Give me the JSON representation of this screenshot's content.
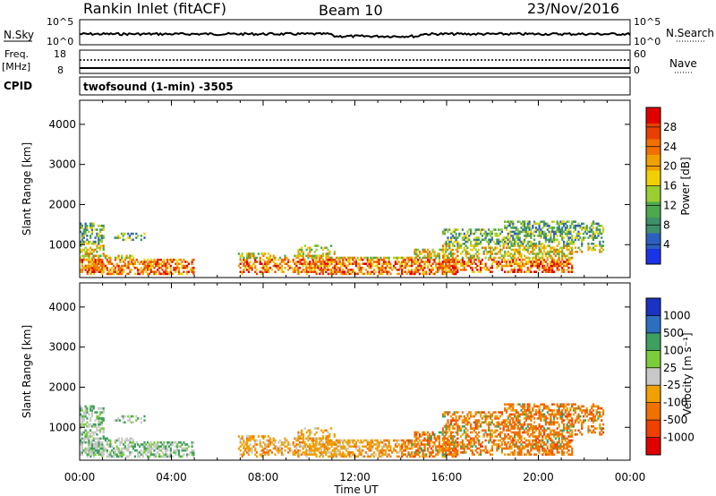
{
  "header": {
    "title": "Rankin Inlet (fitACF)",
    "beam": "Beam 10",
    "date": "23/Nov/2016"
  },
  "strip_nsky": {
    "left_label": "N.Sky",
    "left_ticks": [
      "10^5",
      "10^0"
    ],
    "right_label": "N.Search",
    "right_ticks": [
      "10^5",
      "10^0"
    ]
  },
  "strip_freq": {
    "left_label_1": "Freq.",
    "left_label_2": "[MHz]",
    "left_ticks": [
      "18",
      "8"
    ],
    "right_label": "Nave",
    "right_ticks": [
      "60",
      "0"
    ]
  },
  "cpid": {
    "label": "CPID",
    "text": "twofsound (1-min) -3505"
  },
  "colors": {
    "power_scale": [
      "#1a33e6",
      "#2d5fbf",
      "#3f8f6a",
      "#4ea84e",
      "#9acd32",
      "#f0d000",
      "#f0a000",
      "#f07000",
      "#e84000",
      "#e00000"
    ],
    "velocity_scale": [
      "#e00000",
      "#f04000",
      "#f07000",
      "#f0a000",
      "#c8c8c8",
      "#7ccd3c",
      "#3f9f5f",
      "#2d6fbf",
      "#1a33c0"
    ]
  },
  "chart_data": [
    {
      "type": "heatmap",
      "name": "power",
      "ylabel": "Slant Range [km]",
      "yticks": [
        "1000",
        "2000",
        "3000",
        "4000"
      ],
      "ylim": [
        180,
        4600
      ],
      "xlim": [
        0,
        24
      ],
      "colorbar_label": "Power [dB]",
      "colorbar_ticks": [
        "4",
        "8",
        "12",
        "16",
        "20",
        "24",
        "28"
      ],
      "colorbar_range": [
        0,
        32
      ]
    },
    {
      "type": "heatmap",
      "name": "velocity",
      "ylabel": "Slant Range [km]",
      "yticks": [
        "1000",
        "2000",
        "3000",
        "4000"
      ],
      "ylim": [
        180,
        4600
      ],
      "xlim": [
        0,
        24
      ],
      "colorbar_label": "Velocity [m s⁻¹]",
      "colorbar_ticks": [
        "1000",
        "500",
        "100",
        "25",
        "-25",
        "-100",
        "-500",
        "-1000"
      ]
    }
  ],
  "xaxis": {
    "ticks": [
      "00:00",
      "04:00",
      "08:00",
      "12:00",
      "16:00",
      "20:00",
      "00:00"
    ],
    "label": "Time UT"
  }
}
